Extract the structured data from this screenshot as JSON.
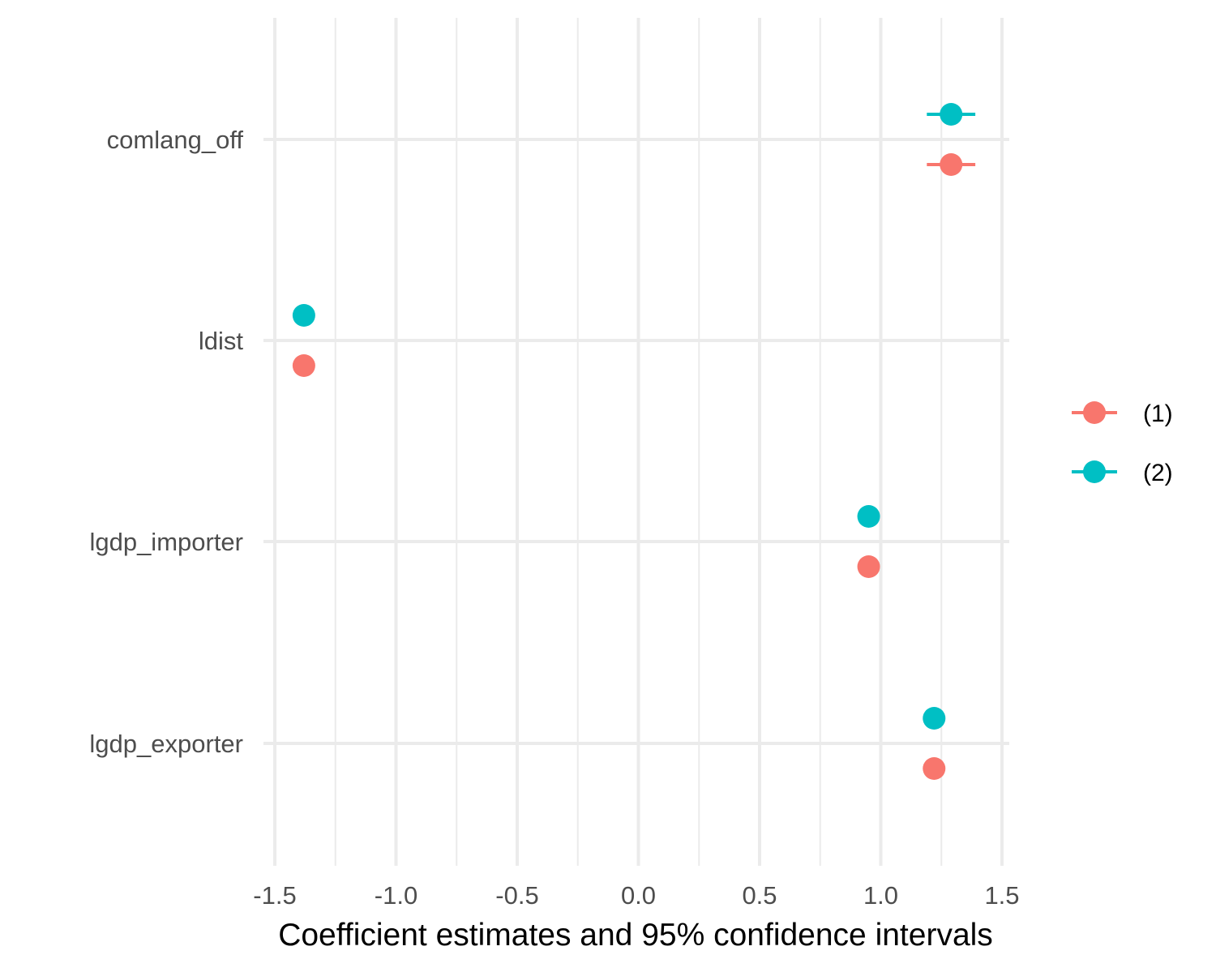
{
  "chart_data": {
    "type": "scatter",
    "subtype": "coefficient-plot",
    "title": "",
    "xlabel": "Coefficient estimates and 95% confidence intervals",
    "ylabel": "",
    "xlim": [
      -1.5,
      1.5
    ],
    "x_ticks": [
      "-1.5",
      "-1.0",
      "-0.5",
      "0.0",
      "0.5",
      "1.0",
      "1.5"
    ],
    "x_tick_values": [
      -1.5,
      -1.0,
      -0.5,
      0.0,
      0.5,
      1.0,
      1.5
    ],
    "categories": [
      "comlang_off",
      "ldist",
      "lgdp_importer",
      "lgdp_exporter"
    ],
    "grid": true,
    "legend_position": "right",
    "series": [
      {
        "name": "(1)",
        "color": "#F8766D",
        "estimates": [
          1.29,
          -1.38,
          0.95,
          1.22
        ],
        "ci_low": [
          1.19,
          -1.39,
          0.94,
          1.215
        ],
        "ci_high": [
          1.39,
          -1.37,
          0.96,
          1.225
        ]
      },
      {
        "name": "(2)",
        "color": "#00BFC4",
        "estimates": [
          1.29,
          -1.38,
          0.95,
          1.22
        ],
        "ci_low": [
          1.19,
          -1.39,
          0.94,
          1.215
        ],
        "ci_high": [
          1.39,
          -1.37,
          0.96,
          1.225
        ]
      }
    ]
  }
}
